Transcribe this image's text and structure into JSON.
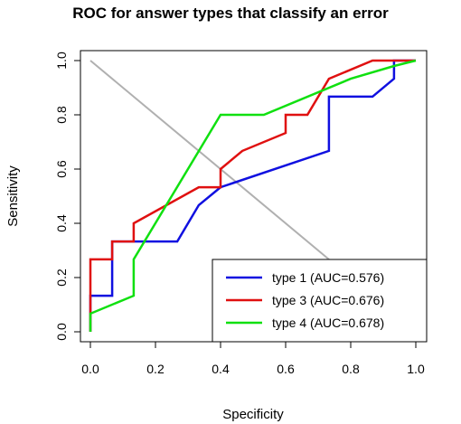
{
  "chart_data": {
    "type": "line",
    "title": "ROC for answer types that classify an error",
    "xlabel": "Specificity",
    "ylabel": "Sensitivity",
    "xlim": [
      0.0,
      1.0
    ],
    "ylim": [
      0.0,
      1.0
    ],
    "x_reversed": true,
    "x_ticks": [
      "0.0",
      "0.2",
      "0.4",
      "0.6",
      "0.8",
      "1.0"
    ],
    "y_ticks": [
      "0.0",
      "0.2",
      "0.4",
      "0.6",
      "0.8",
      "1.0"
    ],
    "grid": false,
    "legend_position": "bottom-right",
    "reference_line": {
      "from": [
        1.0,
        0.0
      ],
      "to": [
        0.0,
        1.0
      ],
      "color": "#b0b0b0"
    },
    "series": [
      {
        "name": "type 1 (AUC=0.576)",
        "color": "#1010e0",
        "points": [
          [
            1.0,
            1.0
          ],
          [
            0.933,
            1.0
          ],
          [
            0.933,
            0.933
          ],
          [
            0.867,
            0.867
          ],
          [
            0.733,
            0.867
          ],
          [
            0.733,
            0.667
          ],
          [
            0.4,
            0.533
          ],
          [
            0.333,
            0.467
          ],
          [
            0.267,
            0.333
          ],
          [
            0.067,
            0.333
          ],
          [
            0.067,
            0.133
          ],
          [
            0.0,
            0.133
          ],
          [
            0.0,
            0.0
          ]
        ]
      },
      {
        "name": "type 3 (AUC=0.676)",
        "color": "#e01010",
        "points": [
          [
            1.0,
            1.0
          ],
          [
            0.867,
            1.0
          ],
          [
            0.733,
            0.933
          ],
          [
            0.667,
            0.8
          ],
          [
            0.6,
            0.8
          ],
          [
            0.6,
            0.733
          ],
          [
            0.467,
            0.667
          ],
          [
            0.4,
            0.6
          ],
          [
            0.4,
            0.533
          ],
          [
            0.333,
            0.533
          ],
          [
            0.133,
            0.4
          ],
          [
            0.133,
            0.333
          ],
          [
            0.067,
            0.333
          ],
          [
            0.067,
            0.267
          ],
          [
            0.0,
            0.267
          ],
          [
            0.0,
            0.0
          ]
        ]
      },
      {
        "name": "type 4 (AUC=0.678)",
        "color": "#10e010",
        "points": [
          [
            1.0,
            1.0
          ],
          [
            0.933,
            0.98
          ],
          [
            0.8,
            0.933
          ],
          [
            0.533,
            0.8
          ],
          [
            0.4,
            0.8
          ],
          [
            0.133,
            0.267
          ],
          [
            0.133,
            0.133
          ],
          [
            0.0,
            0.067
          ],
          [
            0.0,
            0.0
          ]
        ]
      }
    ]
  }
}
